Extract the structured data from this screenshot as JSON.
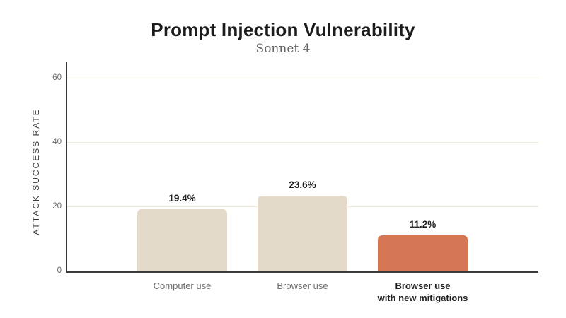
{
  "page": {
    "background": "#FFFFFF"
  },
  "chart_data": {
    "type": "bar",
    "title": "Prompt Injection Vulnerability",
    "subtitle": "Sonnet 4",
    "ylabel": "ATTACK SUCCESS RATE",
    "xlabel": "",
    "categories": [
      "Computer use",
      "Browser use",
      "Browser use\nwith new mitigations"
    ],
    "category_emphasis": [
      false,
      false,
      true
    ],
    "values": [
      19.4,
      23.6,
      11.2
    ],
    "value_labels": [
      "19.4%",
      "23.6%",
      "11.2%"
    ],
    "yticks": [
      0,
      20,
      40,
      60
    ],
    "ylim": [
      0,
      65
    ],
    "grid": true,
    "legend": "none",
    "colors": {
      "bar_fill": [
        "#E3DACA",
        "#E3DACA",
        "#D57754"
      ],
      "bar_default": "#E3DACA",
      "bar_highlight": "#D57754",
      "gridline": "#EFE9DC",
      "axis": "#3A3A3A",
      "tick_label": "#6B6B6B",
      "title": "#1C1C1C",
      "subtitle": "#636363",
      "value_label": "#1F1F1F",
      "category_label": "#6E6E6E",
      "category_label_emphasis": "#1F1F1F"
    }
  }
}
